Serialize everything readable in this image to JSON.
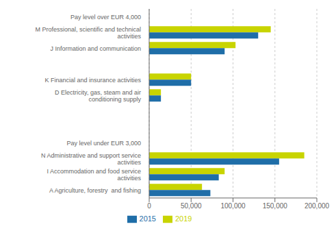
{
  "chart_data": {
    "type": "bar",
    "orientation": "horizontal",
    "categories": [
      "Pay level over EUR 4,000",
      "M Professional, scientific and technical\nactivities",
      "J Information and communication",
      null,
      "K Financial and insurance activities",
      "D Electricity, gas, steam and air\nconditioning supply",
      null,
      null,
      "Pay level under EUR 3,000",
      "N Administrative and support service\nactivities",
      "I Accommodation and food service\nactivities",
      "A Agriculture, forestry  and fishing"
    ],
    "series": [
      {
        "name": "2019",
        "color": "#c8d400",
        "values": [
          null,
          145000,
          103000,
          null,
          50000,
          14000,
          null,
          null,
          null,
          185000,
          90000,
          63000
        ]
      },
      {
        "name": "2015",
        "color": "#1f6ea8",
        "values": [
          null,
          130000,
          90000,
          null,
          50000,
          14000,
          null,
          null,
          null,
          155000,
          83000,
          73000
        ]
      }
    ],
    "xlim": [
      0,
      200000
    ],
    "xticks": [
      0,
      {
        "value": 50000,
        "label": "50,000"
      },
      {
        "value": 100000,
        "label": "100,000"
      },
      {
        "value": 150000,
        "label": "150,000"
      },
      {
        "value": 200000,
        "label": "200,000"
      }
    ],
    "grid": true,
    "legend": "bottom"
  }
}
